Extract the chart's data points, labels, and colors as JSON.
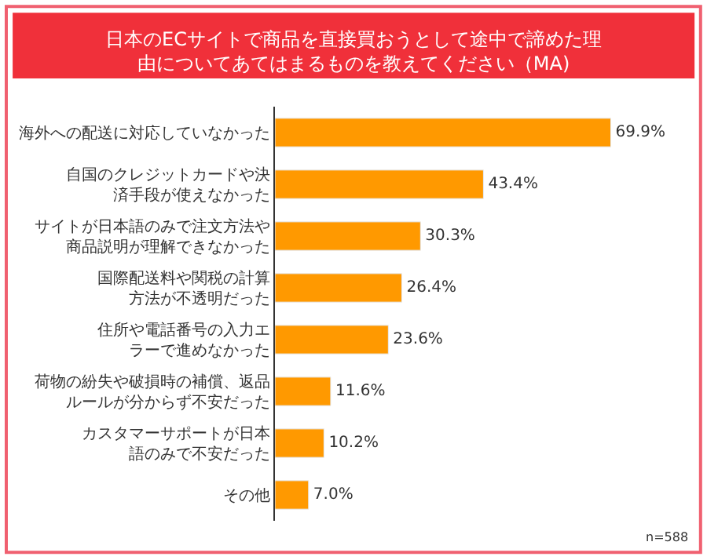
{
  "chart_data": {
    "type": "bar",
    "orientation": "horizontal",
    "title": "日本のECサイトで商品を直接買おうとして途中で諦めた理由についてあてはまるものを教えてください（MA)",
    "categories": [
      "海外への配送に対応していなかった",
      "自国のクレジットカードや決済手段が使えなかった",
      "サイトが日本語のみで注文方法や商品説明が理解できなかった",
      "国際配送料や関税の計算方法が不透明だった",
      "住所や電話番号の入力エラーで進めなかった",
      "荷物の紛失や破損時の補償、返品ルールが分からず不安だった",
      "カスタマーサポートが日本語のみで不安だった",
      "その他"
    ],
    "values": [
      69.9,
      43.4,
      30.3,
      26.4,
      23.6,
      11.6,
      10.2,
      7.0
    ],
    "value_labels": [
      "69.9%",
      "43.4%",
      "30.3%",
      "26.4%",
      "23.6%",
      "11.6%",
      "10.2%",
      "7.0%"
    ],
    "color": "#ff9900",
    "annotations": [
      "n=588"
    ]
  }
}
